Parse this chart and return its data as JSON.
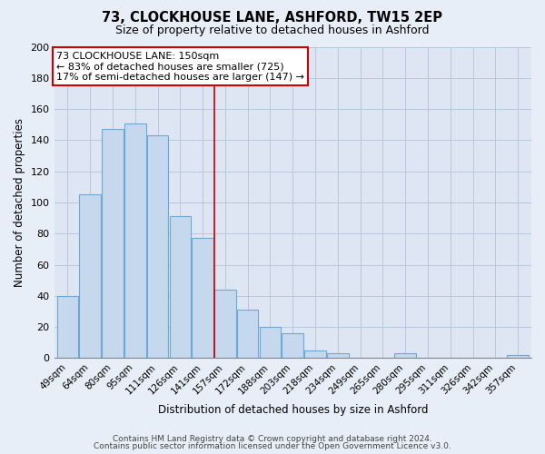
{
  "title": "73, CLOCKHOUSE LANE, ASHFORD, TW15 2EP",
  "subtitle": "Size of property relative to detached houses in Ashford",
  "xlabel": "Distribution of detached houses by size in Ashford",
  "ylabel": "Number of detached properties",
  "bar_labels": [
    "49sqm",
    "64sqm",
    "80sqm",
    "95sqm",
    "111sqm",
    "126sqm",
    "141sqm",
    "157sqm",
    "172sqm",
    "188sqm",
    "203sqm",
    "218sqm",
    "234sqm",
    "249sqm",
    "265sqm",
    "280sqm",
    "295sqm",
    "311sqm",
    "326sqm",
    "342sqm",
    "357sqm"
  ],
  "bar_values": [
    40,
    105,
    147,
    151,
    143,
    91,
    77,
    44,
    31,
    20,
    16,
    5,
    3,
    0,
    0,
    3,
    0,
    0,
    0,
    0,
    2
  ],
  "bar_color": "#c5d8ee",
  "bar_edge_color": "#6aaad4",
  "annotation_title": "73 CLOCKHOUSE LANE: 150sqm",
  "annotation_line1": "← 83% of detached houses are smaller (725)",
  "annotation_line2": "17% of semi-detached houses are larger (147) →",
  "annotation_box_color": "#ffffff",
  "annotation_box_edge": "#cc0000",
  "vline_pos": 6.5,
  "ylim": [
    0,
    200
  ],
  "yticks": [
    0,
    20,
    40,
    60,
    80,
    100,
    120,
    140,
    160,
    180,
    200
  ],
  "footer1": "Contains HM Land Registry data © Crown copyright and database right 2024.",
  "footer2": "Contains public sector information licensed under the Open Government Licence v3.0.",
  "bg_color": "#e8eef7",
  "plot_bg_color": "#dde6f2",
  "grid_color": "#b8c8dc"
}
